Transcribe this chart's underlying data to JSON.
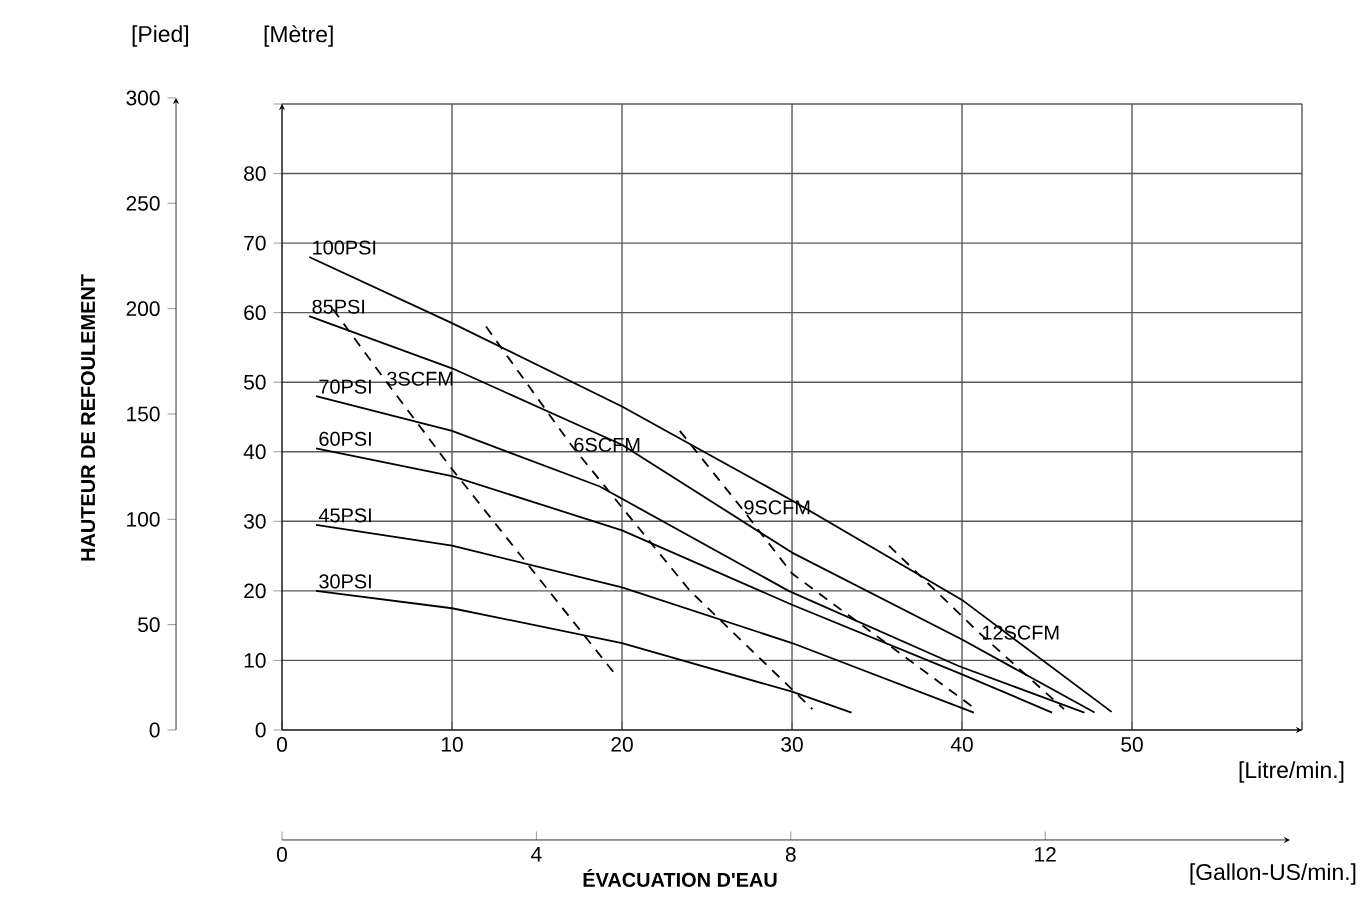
{
  "chart_data": {
    "type": "line",
    "xlabel": "[Litre/min.]",
    "x2label": "[Gallon-US/min.]",
    "ylabel": "[Mètre]",
    "y2label": "[Pied]",
    "annotations": [
      "HAUTEUR DE REFOULEMENT",
      "ÉVACUATION D'EAU"
    ],
    "xlim": [
      0,
      60
    ],
    "xticks": [
      0,
      10,
      20,
      30,
      40,
      50,
      {
        "value": 60,
        "label": null
      }
    ],
    "x2lim": [
      0,
      15.85
    ],
    "x2ticks": [
      0,
      4,
      8,
      12
    ],
    "ylim": [
      0,
      90
    ],
    "yticks": [
      0,
      10,
      20,
      30,
      40,
      50,
      60,
      70,
      80,
      {
        "value": 90,
        "label": null
      }
    ],
    "y2lim": [
      0,
      300
    ],
    "y2ticks": [
      0,
      50,
      100,
      150,
      200,
      250,
      300
    ],
    "grid": true,
    "marker": "none",
    "series": [
      {
        "name": "100PSI",
        "color": "#000000",
        "line_style": "solid",
        "x": [
          1.6,
          10,
          20,
          30,
          40,
          48.8
        ],
        "values": [
          68,
          58.5,
          46.5,
          33,
          18.7,
          2.6
        ]
      },
      {
        "name": "85PSI",
        "color": "#000000",
        "line_style": "solid",
        "x": [
          1.6,
          10,
          20,
          30,
          40,
          47.8
        ],
        "values": [
          59.5,
          52,
          41,
          25.5,
          13,
          2.5
        ]
      },
      {
        "name": "70PSI",
        "color": "#000000",
        "line_style": "solid",
        "x": [
          2,
          10,
          18.7,
          29.8,
          39.8,
          47.2
        ],
        "values": [
          48,
          43,
          35,
          20,
          9.2,
          2.5
        ]
      },
      {
        "name": "60PSI",
        "color": "#000000",
        "line_style": "solid",
        "x": [
          2,
          10,
          20,
          30,
          40,
          45.3
        ],
        "values": [
          40.5,
          36.5,
          28.7,
          18,
          8,
          2.5
        ]
      },
      {
        "name": "45PSI",
        "color": "#000000",
        "line_style": "solid",
        "x": [
          2,
          10,
          20,
          30,
          40.7
        ],
        "values": [
          29.5,
          26.5,
          20.5,
          12.5,
          2.5
        ]
      },
      {
        "name": "30PSI",
        "color": "#000000",
        "line_style": "solid",
        "x": [
          2,
          10,
          20,
          30,
          33.5
        ],
        "values": [
          20,
          17.5,
          12.5,
          5.5,
          2.5
        ]
      },
      {
        "name": "3SCFM",
        "color": "#000000",
        "line_style": "dashed",
        "x": [
          3,
          6,
          10,
          19.6
        ],
        "values": [
          60.5,
          50.5,
          37.5,
          8
        ]
      },
      {
        "name": "6SCFM",
        "color": "#000000",
        "line_style": "dashed",
        "x": [
          12,
          17,
          24,
          31.2
        ],
        "values": [
          58,
          41,
          20,
          3
        ]
      },
      {
        "name": "9SCFM",
        "color": "#000000",
        "line_style": "dashed",
        "x": [
          23.4,
          27,
          30,
          40.8
        ],
        "values": [
          43,
          32,
          22.5,
          3
        ]
      },
      {
        "name": "12SCFM",
        "color": "#000000",
        "line_style": "dashed",
        "x": [
          35.7,
          41,
          46
        ],
        "values": [
          26.5,
          14,
          3
        ]
      }
    ]
  }
}
